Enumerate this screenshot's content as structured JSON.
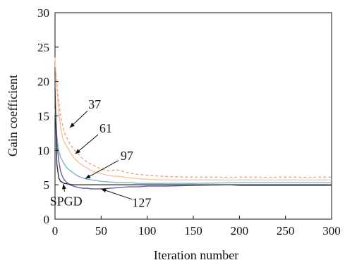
{
  "chart_data": {
    "type": "line",
    "xlabel": "Iteration number",
    "ylabel": "Gain coefficient",
    "xlim": [
      0,
      300
    ],
    "ylim": [
      0,
      30
    ],
    "xticks": [
      0,
      50,
      100,
      150,
      200,
      250,
      300
    ],
    "yticks": [
      0,
      5,
      10,
      15,
      20,
      25,
      30
    ],
    "grid": false,
    "series": [
      {
        "name": "37",
        "color": "#f0a080",
        "dash": "4,3",
        "x": [
          0,
          2,
          4,
          6,
          8,
          10,
          13,
          16,
          20,
          25,
          30,
          35,
          40,
          45,
          50,
          55,
          60,
          65,
          70,
          75,
          80,
          90,
          100,
          120,
          150,
          200,
          250,
          300
        ],
        "y": [
          22.5,
          20,
          17,
          15,
          13.8,
          12.6,
          11.8,
          11,
          10.2,
          9.5,
          8.8,
          8.3,
          7.9,
          7.6,
          7.3,
          7.1,
          7.0,
          7.2,
          7.1,
          6.9,
          6.7,
          6.5,
          6.4,
          6.2,
          6.1,
          6.1,
          6.1,
          6.1
        ]
      },
      {
        "name": "61",
        "color": "#f2c6a0",
        "dash": "",
        "x": [
          0,
          2,
          4,
          6,
          8,
          10,
          13,
          16,
          20,
          25,
          30,
          35,
          40,
          45,
          50,
          60,
          70,
          80,
          90,
          100,
          120,
          150,
          200,
          250,
          300
        ],
        "y": [
          23.5,
          19,
          15.5,
          13.5,
          12,
          11.2,
          10.5,
          9.8,
          9.0,
          8.3,
          7.8,
          7.4,
          7.0,
          6.8,
          6.6,
          6.3,
          6.2,
          6.0,
          5.9,
          5.8,
          5.7,
          5.7,
          5.7,
          5.7,
          5.7
        ]
      },
      {
        "name": "97",
        "color": "#7ab8c8",
        "dash": "",
        "x": [
          0,
          2,
          4,
          6,
          8,
          10,
          12,
          15,
          18,
          22,
          26,
          30,
          35,
          40,
          50,
          60,
          70,
          80,
          90,
          100,
          120,
          150,
          200,
          250,
          300
        ],
        "y": [
          16,
          12,
          10,
          9.0,
          8.5,
          8.0,
          7.6,
          7.2,
          6.9,
          6.5,
          6.2,
          6.0,
          5.8,
          5.7,
          5.5,
          5.4,
          5.3,
          5.3,
          5.2,
          5.2,
          5.2,
          5.2,
          5.3,
          5.3,
          5.3
        ]
      },
      {
        "name": "127",
        "color": "#6a5aa8",
        "dash": "",
        "x": [
          0,
          2,
          4,
          6,
          8,
          10,
          13,
          16,
          20,
          25,
          30,
          35,
          40,
          50,
          60,
          70,
          80,
          90,
          100,
          120,
          150,
          190,
          200,
          250,
          300
        ],
        "y": [
          18,
          11,
          8.5,
          7.0,
          6.2,
          5.7,
          5.3,
          5.0,
          4.8,
          4.6,
          4.5,
          4.5,
          4.4,
          4.4,
          4.5,
          4.6,
          4.7,
          4.7,
          4.8,
          4.8,
          4.9,
          5.0,
          4.9,
          4.9,
          4.9
        ]
      },
      {
        "name": "SPGD",
        "color": "#333333",
        "dash": "",
        "x": [
          0,
          2,
          4,
          6,
          10,
          15,
          20,
          30,
          40,
          50,
          60,
          80,
          100,
          150,
          200,
          250,
          300
        ],
        "y": [
          19,
          8,
          6,
          5.5,
          5.2,
          5.1,
          5.0,
          5.0,
          5.0,
          5.0,
          5.0,
          5.0,
          5.0,
          5.0,
          5.0,
          5.0,
          5.0
        ]
      }
    ],
    "annotations": [
      {
        "text": "37",
        "label_x": 43,
        "label_y": 16.1,
        "arrow_to_x": 16,
        "arrow_to_y": 13.3
      },
      {
        "text": "61",
        "label_x": 55,
        "label_y": 12.6,
        "arrow_to_x": 22,
        "arrow_to_y": 9.5
      },
      {
        "text": "97",
        "label_x": 78,
        "label_y": 8.6,
        "arrow_to_x": 33,
        "arrow_to_y": 5.9
      },
      {
        "text": "127",
        "label_x": 94,
        "label_y": 1.8,
        "arrow_to_x": 50,
        "arrow_to_y": 4.4
      },
      {
        "text": "SPGD",
        "label_x": 12,
        "label_y": 2.0,
        "arrow_to_x": 9,
        "arrow_to_y": 5.1
      }
    ]
  }
}
